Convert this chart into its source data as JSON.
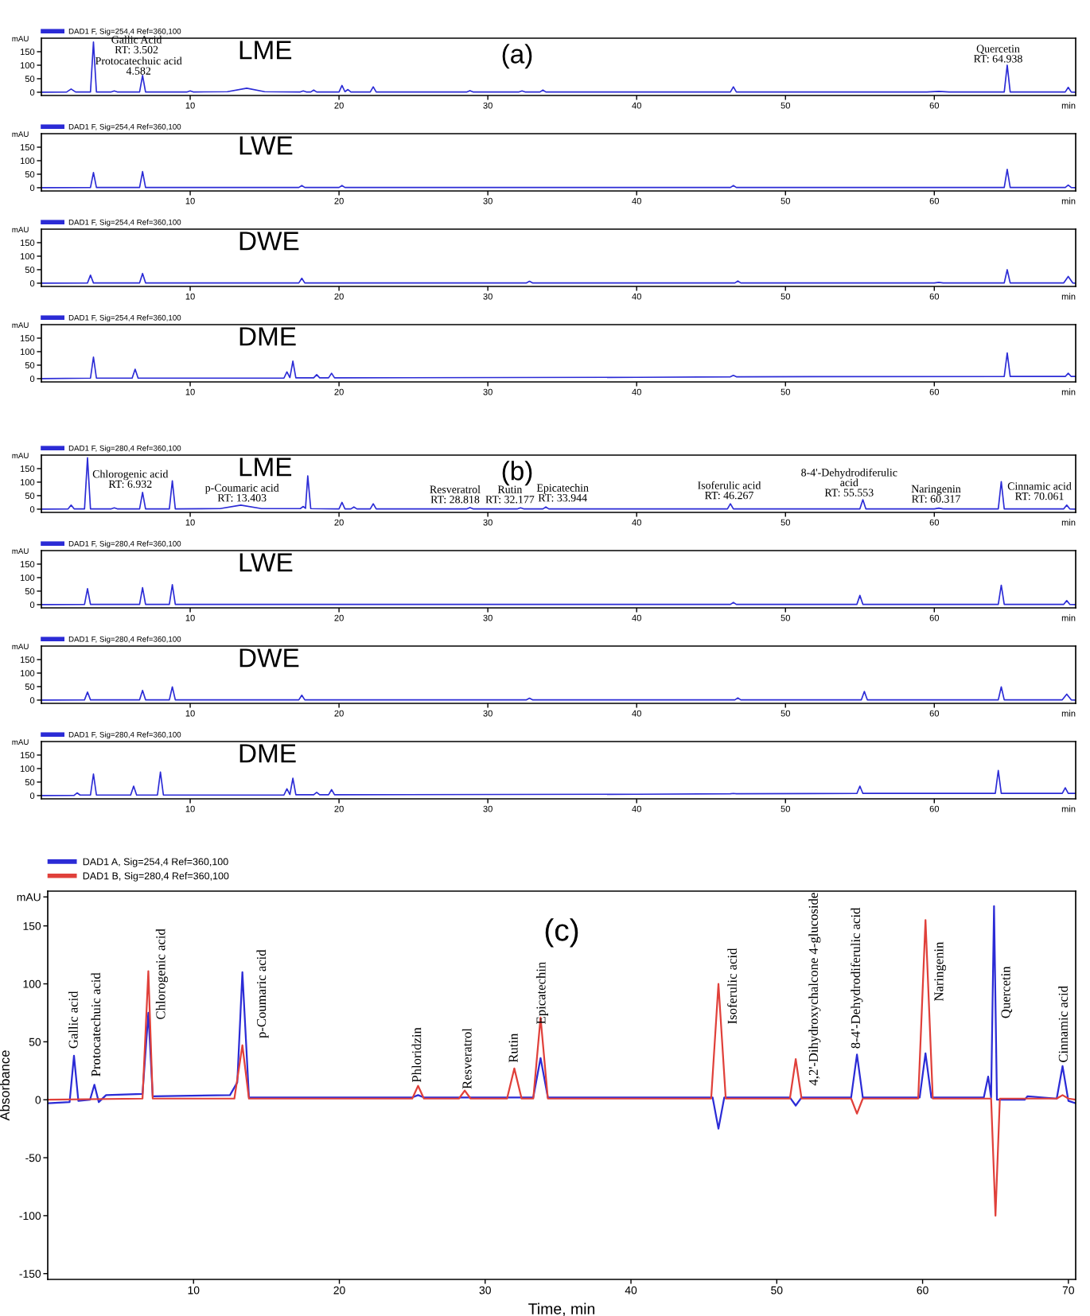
{
  "chart_data": [
    {
      "type": "line",
      "title": "(a)",
      "subtitle": "LME",
      "ylabel": "mAU",
      "xlabel": "min",
      "xlim": [
        0,
        69.5
      ],
      "xticks": [
        10,
        20,
        30,
        40,
        50,
        60
      ],
      "ylim": [
        -12,
        200
      ],
      "yticks": [
        0,
        50,
        100,
        150
      ],
      "legend": "top left",
      "grid": false,
      "series": [
        {
          "name": "DAD1 F, Sig=254,4 Ref=360,100",
          "color": "#2b2bd6",
          "x": [
            0,
            1.7,
            2.0,
            2.3,
            3.3,
            3.5,
            3.7,
            4.7,
            4.9,
            5.1,
            6.6,
            6.8,
            7.0,
            9.8,
            10.0,
            10.2,
            12.5,
            13.8,
            15.0,
            17.4,
            17.6,
            17.8,
            18.1,
            18.3,
            18.5,
            20.0,
            20.2,
            20.4,
            20.6,
            20.8,
            22.1,
            22.3,
            22.5,
            28.6,
            28.8,
            29.0,
            32.1,
            32.3,
            32.5,
            33.5,
            33.7,
            33.9,
            46.3,
            46.5,
            46.7,
            59.5,
            60.3,
            61.0,
            64.7,
            64.9,
            65.1,
            68.8,
            69.0,
            69.2,
            69.5
          ],
          "values": [
            0,
            1,
            12,
            1,
            1,
            186,
            1,
            1,
            5,
            1,
            1,
            62,
            1,
            1,
            5,
            1,
            2,
            15,
            2,
            1,
            5,
            1,
            1,
            8,
            1,
            1,
            25,
            2,
            10,
            1,
            1,
            20,
            1,
            1,
            6,
            1,
            1,
            5,
            1,
            1,
            8,
            1,
            1,
            20,
            1,
            1,
            3,
            1,
            1,
            100,
            1,
            1,
            18,
            1,
            0
          ]
        }
      ],
      "annotations": [
        "Gallic Acid\nRT: 3.502",
        "Protocatechuic acid\n4.582",
        "Quercetin\nRT: 64.938"
      ]
    },
    {
      "type": "line",
      "subtitle": "LWE",
      "ylabel": "mAU",
      "xlabel": "min",
      "xlim": [
        0,
        69.5
      ],
      "xticks": [
        10,
        20,
        30,
        40,
        50,
        60
      ],
      "ylim": [
        -12,
        200
      ],
      "yticks": [
        0,
        50,
        100,
        150
      ],
      "legend": "top left",
      "grid": false,
      "series": [
        {
          "name": "DAD1 F, Sig=254,4 Ref=360,100",
          "color": "#2b2bd6",
          "x": [
            0,
            3.3,
            3.5,
            3.7,
            6.6,
            6.8,
            7.0,
            17.3,
            17.5,
            17.7,
            20.0,
            20.2,
            20.4,
            46.3,
            46.5,
            46.7,
            64.7,
            64.9,
            65.1,
            68.8,
            69.0,
            69.2,
            69.5
          ],
          "values": [
            0,
            1,
            56,
            1,
            1,
            60,
            1,
            1,
            8,
            1,
            1,
            8,
            1,
            1,
            8,
            1,
            1,
            68,
            1,
            1,
            10,
            1,
            0
          ]
        }
      ]
    },
    {
      "type": "line",
      "subtitle": "DWE",
      "ylabel": "mAU",
      "xlabel": "min",
      "xlim": [
        0,
        69.5
      ],
      "xticks": [
        10,
        20,
        30,
        40,
        50,
        60
      ],
      "ylim": [
        -12,
        200
      ],
      "yticks": [
        0,
        50,
        100,
        150
      ],
      "legend": "top left",
      "grid": false,
      "series": [
        {
          "name": "DAD1 F, Sig=254,4 Ref=360,100",
          "color": "#2b2bd6",
          "x": [
            0,
            3.1,
            3.3,
            3.5,
            6.6,
            6.8,
            7.0,
            17.3,
            17.5,
            17.7,
            32.6,
            32.8,
            33.0,
            46.6,
            46.8,
            47.0,
            60.0,
            60.3,
            60.6,
            64.7,
            64.9,
            65.1,
            68.7,
            69.0,
            69.3,
            69.5
          ],
          "values": [
            0,
            1,
            30,
            1,
            1,
            36,
            1,
            1,
            18,
            1,
            1,
            7,
            1,
            1,
            8,
            1,
            1,
            3,
            1,
            1,
            50,
            1,
            1,
            25,
            1,
            0
          ]
        }
      ]
    },
    {
      "type": "line",
      "subtitle": "DME",
      "ylabel": "mAU",
      "xlabel": "min",
      "xlim": [
        0,
        69.5
      ],
      "xticks": [
        10,
        20,
        30,
        40,
        50,
        60
      ],
      "ylim": [
        -12,
        200
      ],
      "yticks": [
        0,
        50,
        100,
        150
      ],
      "legend": "top left",
      "grid": false,
      "series": [
        {
          "name": "DAD1 F, Sig=254,4 Ref=360,100",
          "color": "#2b2bd6",
          "x": [
            0,
            3.3,
            3.5,
            3.7,
            6.1,
            6.3,
            6.5,
            16.3,
            16.5,
            16.7,
            16.9,
            17.1,
            18.3,
            18.5,
            18.7,
            19.3,
            19.5,
            19.7,
            40,
            46.3,
            46.5,
            46.7,
            64.7,
            64.9,
            65.1,
            68.8,
            69.0,
            69.2,
            69.5
          ],
          "values": [
            0,
            2,
            80,
            2,
            2,
            35,
            2,
            2,
            25,
            4,
            65,
            3,
            3,
            15,
            3,
            3,
            20,
            3,
            5,
            7,
            12,
            7,
            8,
            95,
            8,
            8,
            20,
            8,
            8
          ]
        }
      ]
    },
    {
      "type": "line",
      "title": "(b)",
      "subtitle": "LME",
      "ylabel": "mAU",
      "xlabel": "min",
      "xlim": [
        0,
        69.5
      ],
      "xticks": [
        10,
        20,
        30,
        40,
        50,
        60
      ],
      "ylim": [
        -12,
        200
      ],
      "yticks": [
        0,
        50,
        100,
        150
      ],
      "legend": "top left",
      "grid": false,
      "series": [
        {
          "name": "DAD1 F, Sig=280,4 Ref=360,100",
          "color": "#2b2bd6",
          "x": [
            0,
            1.8,
            2.0,
            2.2,
            2.9,
            3.1,
            3.3,
            4.7,
            4.9,
            5.1,
            6.6,
            6.8,
            7.0,
            8.6,
            8.8,
            9.0,
            12.0,
            13.4,
            14.8,
            17.4,
            17.6,
            17.75,
            17.9,
            18.1,
            20.0,
            20.2,
            20.4,
            20.8,
            21.0,
            21.2,
            22.1,
            22.3,
            22.5,
            28.6,
            28.8,
            29.0,
            32.0,
            32.2,
            32.4,
            33.7,
            33.9,
            34.1,
            46.1,
            46.3,
            46.5,
            55.0,
            55.2,
            55.4,
            60.0,
            60.3,
            60.6,
            64.3,
            64.5,
            64.7,
            68.7,
            68.9,
            69.1,
            69.5
          ],
          "values": [
            0,
            1,
            15,
            1,
            1,
            190,
            1,
            1,
            5,
            1,
            1,
            62,
            1,
            1,
            105,
            1,
            2,
            15,
            2,
            2,
            10,
            3,
            123,
            2,
            1,
            25,
            1,
            1,
            8,
            1,
            1,
            20,
            1,
            1,
            6,
            1,
            1,
            5,
            1,
            1,
            8,
            1,
            1,
            20,
            1,
            1,
            35,
            1,
            1,
            4,
            1,
            1,
            102,
            1,
            1,
            15,
            1,
            0
          ]
        }
      ],
      "annotations": [
        "Chlorogenic acid\nRT: 6.932",
        "p-Coumaric acid\nRT: 13.403",
        "Resveratrol\nRT: 28.818",
        "Rutin\nRT: 32.177",
        "Epicatechin\nRT: 33.944",
        "Isoferulic acid\nRT: 46.267",
        "8-4'-Dehydrodiferulic\nacid\nRT: 55.553",
        "Naringenin\nRT: 60.317",
        "Cinnamic acid\nRT: 70.061"
      ]
    },
    {
      "type": "line",
      "subtitle": "LWE",
      "ylabel": "mAU",
      "xlabel": "min",
      "xlim": [
        0,
        69.5
      ],
      "xticks": [
        10,
        20,
        30,
        40,
        50,
        60
      ],
      "ylim": [
        -12,
        200
      ],
      "yticks": [
        0,
        50,
        100,
        150
      ],
      "legend": "top left",
      "grid": false,
      "series": [
        {
          "name": "DAD1 F, Sig=280,4 Ref=360,100",
          "color": "#2b2bd6",
          "x": [
            0,
            2.9,
            3.1,
            3.3,
            6.6,
            6.8,
            7.0,
            8.6,
            8.8,
            9.0,
            46.3,
            46.5,
            46.7,
            54.8,
            55.0,
            55.2,
            64.3,
            64.5,
            64.7,
            68.7,
            68.9,
            69.1,
            69.5
          ],
          "values": [
            0,
            1,
            59,
            1,
            1,
            63,
            1,
            1,
            74,
            1,
            1,
            8,
            1,
            1,
            34,
            1,
            1,
            72,
            1,
            1,
            15,
            1,
            0
          ]
        }
      ]
    },
    {
      "type": "line",
      "subtitle": "DWE",
      "ylabel": "mAU",
      "xlabel": "min",
      "xlim": [
        0,
        69.5
      ],
      "xticks": [
        10,
        20,
        30,
        40,
        50,
        60
      ],
      "ylim": [
        -12,
        200
      ],
      "yticks": [
        0,
        50,
        100,
        150
      ],
      "legend": "top left",
      "grid": false,
      "series": [
        {
          "name": "DAD1 F, Sig=280,4 Ref=360,100",
          "color": "#2b2bd6",
          "x": [
            0,
            2.9,
            3.1,
            3.3,
            6.6,
            6.8,
            7.0,
            8.6,
            8.8,
            9.0,
            17.3,
            17.5,
            17.7,
            32.6,
            32.8,
            33.0,
            46.6,
            46.8,
            47.0,
            55.1,
            55.3,
            55.5,
            64.3,
            64.5,
            64.7,
            68.6,
            68.9,
            69.2,
            69.5
          ],
          "values": [
            0,
            1,
            30,
            1,
            1,
            36,
            1,
            1,
            49,
            1,
            1,
            18,
            1,
            1,
            7,
            1,
            1,
            8,
            1,
            1,
            32,
            1,
            1,
            49,
            1,
            1,
            22,
            1,
            0
          ]
        }
      ]
    },
    {
      "type": "line",
      "subtitle": "DME",
      "ylabel": "mAU",
      "xlabel": "min",
      "xlim": [
        0,
        69.5
      ],
      "xticks": [
        10,
        20,
        30,
        40,
        50,
        60
      ],
      "ylim": [
        -12,
        200
      ],
      "yticks": [
        0,
        50,
        100,
        150
      ],
      "legend": "top left",
      "grid": false,
      "series": [
        {
          "name": "DAD1 F, Sig=280,4 Ref=360,100",
          "color": "#2b2bd6",
          "x": [
            0,
            2.2,
            2.4,
            2.6,
            3.3,
            3.5,
            3.7,
            6.0,
            6.2,
            6.4,
            7.8,
            8.0,
            8.2,
            16.3,
            16.5,
            16.7,
            16.9,
            17.1,
            18.3,
            18.5,
            18.7,
            19.3,
            19.5,
            19.7,
            40,
            46.3,
            46.5,
            46.7,
            54.8,
            55.0,
            55.2,
            64.1,
            64.3,
            64.5,
            68.6,
            68.8,
            69.0,
            69.5
          ],
          "values": [
            0,
            1,
            10,
            2,
            2,
            80,
            2,
            2,
            35,
            2,
            2,
            87,
            2,
            2,
            25,
            4,
            64,
            3,
            3,
            12,
            3,
            3,
            22,
            3,
            5,
            7,
            8,
            7,
            8,
            35,
            8,
            8,
            93,
            8,
            8,
            29,
            8,
            8
          ]
        }
      ]
    },
    {
      "type": "line",
      "title": "(c)",
      "xlabel": "Time, min",
      "ylabel": "Absorbance",
      "xlim": [
        0,
        70.5
      ],
      "xticks": [
        10,
        20,
        30,
        40,
        50,
        60,
        70
      ],
      "ylim": [
        -155,
        180
      ],
      "yticks": [
        -150,
        -100,
        -50,
        0,
        50,
        100,
        150,
        {
          "value": 175,
          "label": "mAU"
        }
      ],
      "legend": "top left",
      "grid": false,
      "series": [
        {
          "name": "DAD1 A, Sig=254,4 Ref=360,100",
          "color": "#2b2bd6",
          "x": [
            0,
            1.5,
            1.8,
            2.1,
            2.9,
            3.2,
            3.5,
            4.0,
            6.5,
            6.9,
            7.2,
            12.5,
            13.0,
            13.35,
            13.8,
            25.0,
            25.4,
            25.8,
            33.3,
            33.8,
            34.3,
            45.6,
            46.0,
            46.4,
            50.9,
            51.3,
            51.7,
            55.1,
            55.5,
            55.9,
            59.8,
            60.2,
            60.6,
            64.2,
            64.5,
            64.7,
            64.9,
            65.1,
            67.0,
            67.2,
            69.2,
            69.6,
            70.0,
            70.5
          ],
          "values": [
            -3,
            -2,
            38,
            -1,
            0,
            13,
            -2,
            4,
            5,
            75,
            3,
            4,
            15,
            110,
            2,
            2,
            4,
            2,
            2,
            36,
            2,
            2,
            -25,
            2,
            2,
            -5,
            2,
            2,
            39,
            2,
            2,
            40,
            2,
            2,
            20,
            2,
            167,
            0,
            0,
            3,
            1,
            29,
            -1,
            -3
          ]
        },
        {
          "name": "DAD1 B, Sig=280,4 Ref=360,100",
          "color": "#e0403a",
          "x": [
            0,
            6.5,
            6.9,
            7.2,
            12.8,
            13.35,
            13.8,
            25.0,
            25.4,
            25.8,
            28.2,
            28.6,
            29.0,
            31.5,
            32.0,
            32.5,
            33.3,
            33.8,
            34.3,
            45.5,
            46.0,
            46.5,
            50.9,
            51.3,
            51.7,
            55.1,
            55.5,
            55.9,
            59.7,
            60.2,
            60.7,
            64.7,
            65.0,
            65.3,
            69.2,
            69.6,
            70.0,
            70.5
          ],
          "values": [
            0,
            1,
            111,
            1,
            1,
            47,
            1,
            1,
            12,
            1,
            1,
            8,
            1,
            1,
            27,
            1,
            1,
            71,
            1,
            1,
            100,
            1,
            1,
            35,
            1,
            1,
            -12,
            1,
            1,
            155,
            1,
            1,
            -100,
            1,
            1,
            4,
            1,
            0
          ]
        }
      ],
      "annotations": [
        "Gallic acid",
        "Protocatechuic acid",
        "Chlorogenic acid",
        "p-Coumaric acid",
        "Phloridzin",
        "Resveratrol",
        "Rutin",
        "Epicatechin",
        "Isoferulic acid",
        "4,2'-Dihydroxychalcone 4-glucoside",
        "8-4'-Dehydrodiferulic acid",
        "Naringenin",
        "Quercetin",
        "Cinnamic acid"
      ]
    }
  ]
}
